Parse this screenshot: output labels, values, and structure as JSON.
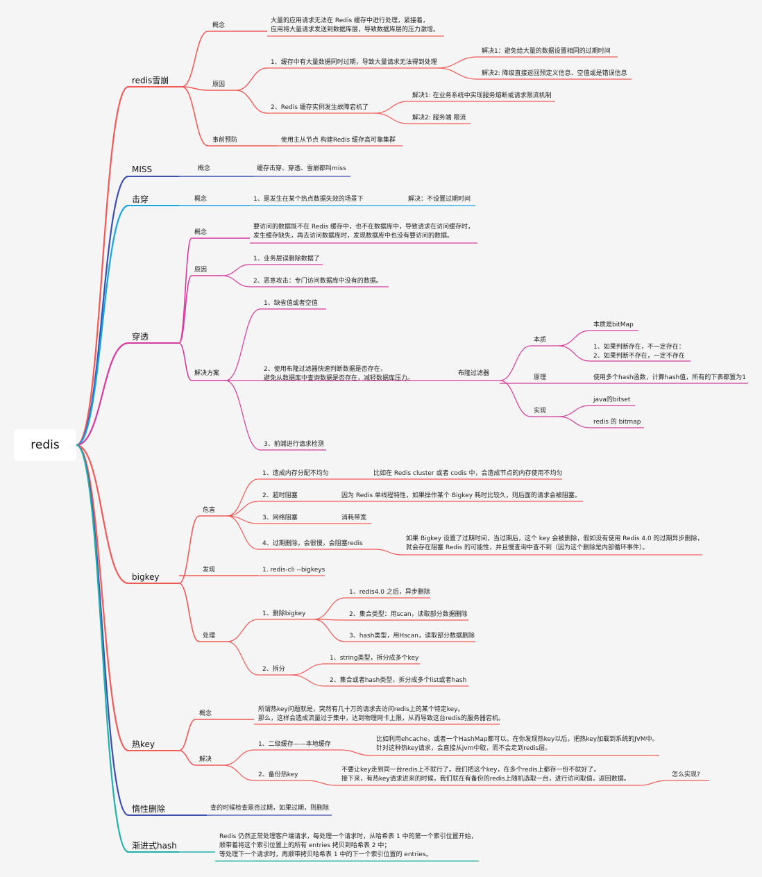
{
  "root": {
    "label": "redis"
  },
  "colors": {
    "red": "#f25a57",
    "blue": "#3b4fb0",
    "cyan": "#14a6e0",
    "magenta": "#d8399e",
    "teal": "#20b2aa"
  },
  "branches": [
    {
      "id": "avalanche",
      "label": "redis雪崩",
      "color": "red",
      "nodes": [
        {
          "id": "av_concept",
          "label": "概念"
        },
        {
          "id": "av_concept_desc",
          "label": "大量的应用请求无法在 Redis 缓存中进行处理，紧接着，\n应用将大量请求发送到数据库层，导致数据库层的压力激增。"
        },
        {
          "id": "av_cause",
          "label": "原因"
        },
        {
          "id": "av_cause1",
          "label": "1、缓存中有大量数据同时过期，导致大量请求无法得到处理"
        },
        {
          "id": "av_cause1_sol1",
          "label": "解决1：避免给大量的数据设置相同的过期时间"
        },
        {
          "id": "av_cause1_sol2",
          "label": "解决2: 降级直接返回预定义信息、空值或是错误信息"
        },
        {
          "id": "av_cause2",
          "label": "2、Redis 缓存实例发生故障宕机了"
        },
        {
          "id": "av_cause2_sol1",
          "label": "解决1: 在业务系统中实现服务熔断或请求限流机制"
        },
        {
          "id": "av_cause2_sol2",
          "label": "解决2: 服务端 限流"
        },
        {
          "id": "av_prevent",
          "label": "事前预防"
        },
        {
          "id": "av_prevent_desc",
          "label": "使用主从节点 构建Redis 缓存高可靠集群"
        }
      ]
    },
    {
      "id": "miss",
      "label": "MISS",
      "color": "blue",
      "nodes": [
        {
          "id": "miss_concept",
          "label": "概念"
        },
        {
          "id": "miss_desc",
          "label": "缓存击穿、穿透、雪崩都叫miss"
        }
      ]
    },
    {
      "id": "breakdown",
      "label": "击穿",
      "color": "cyan",
      "nodes": [
        {
          "id": "bd_concept",
          "label": "概念"
        },
        {
          "id": "bd_desc",
          "label": "1、是发生在某个热点数据失效的场景下"
        },
        {
          "id": "bd_sol",
          "label": "解决：不设置过期时间"
        }
      ]
    },
    {
      "id": "penetration",
      "label": "穿透",
      "color": "magenta",
      "nodes": [
        {
          "id": "pn_concept",
          "label": "概念"
        },
        {
          "id": "pn_concept_desc",
          "label": "要访问的数据既不在 Redis 缓存中，也不在数据库中，导致请求在访问缓存时，\n发生缓存缺失，再去访问数据库时，发现数据库中也没有要访问的数据。"
        },
        {
          "id": "pn_cause",
          "label": "原因"
        },
        {
          "id": "pn_cause1",
          "label": "1、业务层误删除数据了"
        },
        {
          "id": "pn_cause2",
          "label": "2、恶意攻击：专门访问数据库中没有的数据。"
        },
        {
          "id": "pn_solution",
          "label": "解决方案"
        },
        {
          "id": "pn_sol1",
          "label": "1、缺省值或者空值"
        },
        {
          "id": "pn_sol2",
          "label": "2、使用布隆过滤器快速判断数据是否存在，\n避免从数据库中查询数据是否存在，减轻数据库压力。"
        },
        {
          "id": "pn_bloom",
          "label": "布隆过滤器"
        },
        {
          "id": "pn_essence",
          "label": "本质"
        },
        {
          "id": "pn_essence1",
          "label": "本质是bitMap"
        },
        {
          "id": "pn_essence2",
          "label": "1、如果判断存在，不一定存在：\n2、如果判断不存在，一定不存在"
        },
        {
          "id": "pn_principle",
          "label": "原理"
        },
        {
          "id": "pn_principle_desc",
          "label": "使用多个hash函数，计算hash值，所有的下表都置为1"
        },
        {
          "id": "pn_impl",
          "label": "实现"
        },
        {
          "id": "pn_impl1",
          "label": "java的bitset"
        },
        {
          "id": "pn_impl2",
          "label": "redis 的 bitmap"
        },
        {
          "id": "pn_sol3",
          "label": "3、前端进行请求检测"
        }
      ]
    },
    {
      "id": "bigkey",
      "label": "bigkey",
      "color": "red",
      "nodes": [
        {
          "id": "bk_harm",
          "label": "危害"
        },
        {
          "id": "bk_harm1",
          "label": "1、造成内存分配不均匀"
        },
        {
          "id": "bk_harm1_desc",
          "label": "比如在 Redis cluster 或者 codis 中，会造成节点的内存使用不均匀"
        },
        {
          "id": "bk_harm2",
          "label": "2、超时阻塞"
        },
        {
          "id": "bk_harm2_desc",
          "label": "因为 Redis 单线程特性，如果操作某个 Bigkey 耗时比较久，则后面的请求会被阻塞。"
        },
        {
          "id": "bk_harm3",
          "label": "3、网络阻塞"
        },
        {
          "id": "bk_harm3_desc",
          "label": "消耗带宽"
        },
        {
          "id": "bk_harm4",
          "label": "4、过期删除，会很慢，会阻塞redis"
        },
        {
          "id": "bk_harm4_desc",
          "label": "如果 Bigkey 设置了过期时间，当过期后，这个 key 会被删除，假如没有使用 Redis 4.0 的过期异步删除，\n就会存在阻塞 Redis 的可能性，并且慢查询中查不到（因为这个删除是内部循环事件）。"
        },
        {
          "id": "bk_find",
          "label": "发现"
        },
        {
          "id": "bk_find1",
          "label": "1. redis-cli --bigkeys"
        },
        {
          "id": "bk_handle",
          "label": "处理"
        },
        {
          "id": "bk_delete",
          "label": "1、删除bigkey"
        },
        {
          "id": "bk_delete1",
          "label": "1、redis4.0 之后，异步删除"
        },
        {
          "id": "bk_delete2",
          "label": "2、集合类型：用scan，读取部分数据删除"
        },
        {
          "id": "bk_delete3",
          "label": "3、hash类型，用Hscan，读取部分数据删除"
        },
        {
          "id": "bk_split",
          "label": "2、拆分"
        },
        {
          "id": "bk_split1",
          "label": "1、string类型，拆分成多个key"
        },
        {
          "id": "bk_split2",
          "label": "2、集合或者hash类型，拆分成多个list或者hash"
        }
      ]
    },
    {
      "id": "hotkey",
      "label": "热key",
      "color": "red",
      "nodes": [
        {
          "id": "hk_concept",
          "label": "概念"
        },
        {
          "id": "hk_concept_desc",
          "label": "所谓热key问题就是，突然有几十万的请求去访问redis上的某个特定key。\n那么，这样会造成流量过于集中，达到物理网卡上限，从而导致这台redis的服务器宕机。"
        },
        {
          "id": "hk_solution",
          "label": "解决"
        },
        {
          "id": "hk_sol1",
          "label": "1、二级缓存——本地缓存"
        },
        {
          "id": "hk_sol1_desc",
          "label": "比如利用ehcache，或者一个HashMap都可以。在你发现热key以后，把热key加载到系统的JVM中。\n针对这种热key请求，会直接从jvm中取，而不会走到redis层。"
        },
        {
          "id": "hk_sol2",
          "label": "2、备份热key"
        },
        {
          "id": "hk_sol2_desc",
          "label": "不要让key走到同一台redis上不就行了。我们把这个key，在多个redis上都存一份不就好了。\n接下来，有热key请求进来的时候，我们就在有备份的redis上随机选取一台，进行访问取值，返回数据。"
        },
        {
          "id": "hk_sol2_q",
          "label": "怎么实现?"
        }
      ]
    },
    {
      "id": "lazy",
      "label": "惰性删除",
      "color": "blue",
      "nodes": [
        {
          "id": "lz_desc",
          "label": "查的时候检查是否过期，如果过期，则删除"
        }
      ]
    },
    {
      "id": "rehash",
      "label": "渐进式hash",
      "color": "teal",
      "nodes": [
        {
          "id": "rh_desc",
          "label": "Redis 仍然正常处理客户端请求，每处理一个请求时，从哈希表 1 中的第一个索引位置开始，\n顺带着将这个索引位置上的所有 entries 拷贝到哈希表 2 中；\n等处理下一个请求时，再顺带拷贝哈希表 1 中的下一个索引位置的 entries。"
        }
      ]
    }
  ]
}
